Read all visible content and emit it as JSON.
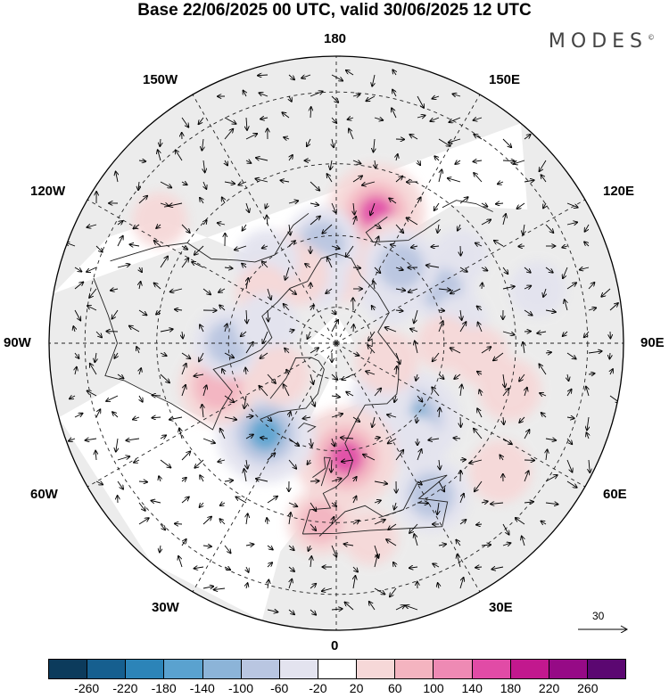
{
  "title": "Base 22/06/2025 00 UTC, valid 30/06/2025 12 UTC",
  "brand": "MODES",
  "brand_mark": "©",
  "longitudes": {
    "top": "180",
    "top_left": "150W",
    "top_right": "150E",
    "upper_left": "120W",
    "upper_right": "120E",
    "left": "90W",
    "right": "90E",
    "lower_left": "60W",
    "lower_right": "60E",
    "bottom_left": "30W",
    "bottom_right": "30E",
    "bottom": "0"
  },
  "reference_vector": "30",
  "colorbar": {
    "colors": [
      "#0c3b5c",
      "#165f8f",
      "#2c84b8",
      "#5aa2cf",
      "#8cb4d8",
      "#b9c6e1",
      "#e3e3ef",
      "#ffffff",
      "#f6d8d8",
      "#f4b4c0",
      "#ee8ab4",
      "#e14ba6",
      "#c2188e",
      "#960a86",
      "#5b0771"
    ],
    "ticks": [
      "-260",
      "-220",
      "-180",
      "-140",
      "-100",
      "-60",
      "-20",
      "20",
      "60",
      "100",
      "140",
      "180",
      "220",
      "260"
    ]
  },
  "anomalies": [
    {
      "lon": 163,
      "lat": 52,
      "value": 150
    },
    {
      "lon": 176,
      "lat": 70,
      "value": 60
    },
    {
      "lon": 150,
      "lat": 58,
      "value": 40
    },
    {
      "lon": -172,
      "lat": 62,
      "value": -90
    },
    {
      "lon": -165,
      "lat": 72,
      "value": -40
    },
    {
      "lon": 125,
      "lat": 48,
      "value": -40
    },
    {
      "lon": 117,
      "lat": 57,
      "value": -70
    },
    {
      "lon": -150,
      "lat": 68,
      "value": 60
    },
    {
      "lon": -146,
      "lat": 62,
      "value": 50
    },
    {
      "lon": -125,
      "lat": 30,
      "value": 40
    },
    {
      "lon": -140,
      "lat": 60,
      "value": -60
    },
    {
      "lon": -125,
      "lat": 65,
      "value": 40
    },
    {
      "lon": 135,
      "lat": 70,
      "value": -40
    },
    {
      "lon": 130,
      "lat": 70,
      "value": -40
    },
    {
      "lon": 140,
      "lat": 62,
      "value": -90
    },
    {
      "lon": 100,
      "lat": 55,
      "value": -40
    },
    {
      "lon": 85,
      "lat": 50,
      "value": 50
    },
    {
      "lon": 90,
      "lat": 60,
      "value": 40
    },
    {
      "lon": 105,
      "lat": 32,
      "value": -40
    },
    {
      "lon": 45,
      "lat": 60,
      "value": -140
    },
    {
      "lon": 40,
      "lat": 70,
      "value": -60
    },
    {
      "lon": 38,
      "lat": 55,
      "value": -40
    },
    {
      "lon": 32,
      "lat": 40,
      "value": -90
    },
    {
      "lon": 52,
      "lat": 32,
      "value": 60
    },
    {
      "lon": 5,
      "lat": 58,
      "value": 160
    },
    {
      "lon": -5,
      "lat": 40,
      "value": 70
    },
    {
      "lon": -38,
      "lat": 58,
      "value": -150
    },
    {
      "lon": -70,
      "lat": 55,
      "value": 100
    },
    {
      "lon": -90,
      "lat": 60,
      "value": -80
    },
    {
      "lon": -105,
      "lat": 70,
      "value": -60
    },
    {
      "lon": 70,
      "lat": 75,
      "value": 60
    },
    {
      "lon": 75,
      "lat": 40,
      "value": 60
    },
    {
      "lon": -60,
      "lat": 72,
      "value": 50
    },
    {
      "lon": 10,
      "lat": 35,
      "value": 40
    }
  ]
}
